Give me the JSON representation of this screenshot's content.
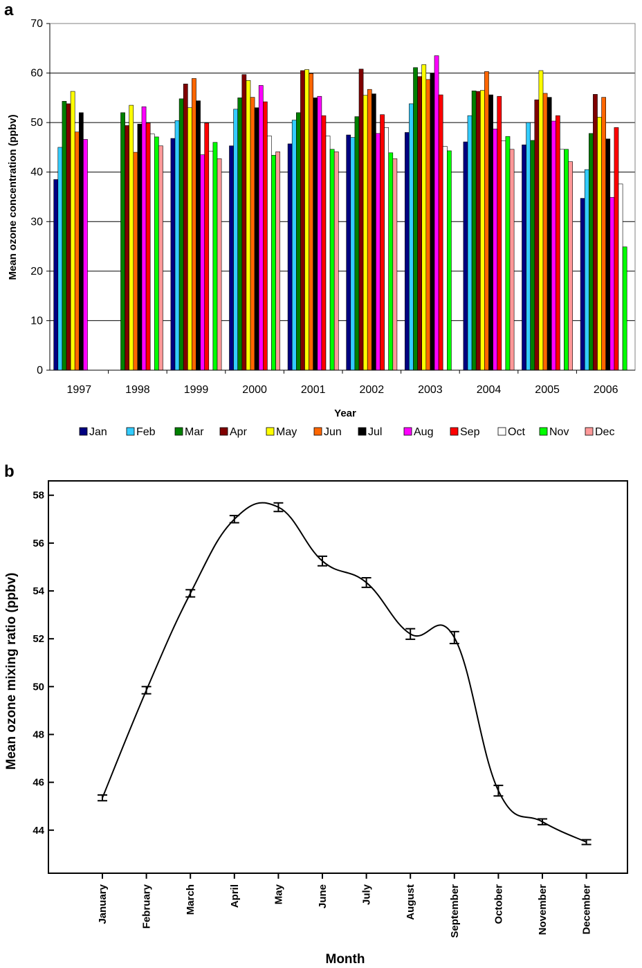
{
  "panel_a": {
    "letter": "a"
  },
  "panel_b": {
    "letter": "b"
  },
  "chart_data": [
    {
      "type": "bar",
      "xlabel": "Year",
      "ylabel": "Mean ozone concentration (ppbv)",
      "ylim": [
        0,
        70
      ],
      "yticks": [
        0,
        10,
        20,
        30,
        40,
        50,
        60,
        70
      ],
      "grid": true,
      "legend_position": "bottom",
      "categories": [
        "1997",
        "1998",
        "1999",
        "2000",
        "2001",
        "2002",
        "2003",
        "2004",
        "2005",
        "2006"
      ],
      "series": [
        {
          "name": "Jan",
          "color": "#000080",
          "values": [
            38.5,
            null,
            46.8,
            45.3,
            45.7,
            47.5,
            48.0,
            46.1,
            45.5,
            34.7
          ]
        },
        {
          "name": "Feb",
          "color": "#33ccff",
          "values": [
            45.0,
            null,
            50.4,
            52.7,
            50.5,
            47.0,
            53.8,
            51.4,
            50.0,
            40.5
          ]
        },
        {
          "name": "Mar",
          "color": "#008000",
          "values": [
            54.3,
            52.0,
            54.8,
            55.0,
            52.0,
            51.2,
            61.1,
            56.4,
            46.4,
            47.8
          ]
        },
        {
          "name": "Apr",
          "color": "#800000",
          "values": [
            53.8,
            49.4,
            57.8,
            59.7,
            60.5,
            60.8,
            59.3,
            56.3,
            54.6,
            55.7
          ]
        },
        {
          "name": "May",
          "color": "#ffff00",
          "values": [
            56.3,
            53.5,
            53.0,
            58.5,
            60.7,
            55.5,
            61.7,
            56.5,
            60.5,
            51.1
          ]
        },
        {
          "name": "Jun",
          "color": "#ff6600",
          "values": [
            48.1,
            44.0,
            58.9,
            55.1,
            59.9,
            56.7,
            58.7,
            60.3,
            55.9,
            55.1
          ]
        },
        {
          "name": "Jul",
          "color": "#000000",
          "values": [
            52.0,
            49.7,
            54.4,
            53.0,
            55.0,
            55.8,
            60.0,
            55.6,
            55.1,
            46.7
          ]
        },
        {
          "name": "Aug",
          "color": "#ff00ff",
          "values": [
            46.6,
            53.2,
            43.5,
            57.5,
            55.3,
            47.8,
            63.5,
            48.7,
            50.3,
            34.9
          ]
        },
        {
          "name": "Sep",
          "color": "#ff0000",
          "values": [
            null,
            49.9,
            49.9,
            54.2,
            51.4,
            51.6,
            55.6,
            55.3,
            51.4,
            49.0
          ]
        },
        {
          "name": "Oct",
          "color": "#ffffff",
          "values": [
            null,
            47.7,
            44.2,
            47.3,
            47.3,
            49.0,
            45.2,
            46.3,
            44.6,
            37.6
          ]
        },
        {
          "name": "Nov",
          "color": "#00ff00",
          "values": [
            null,
            47.1,
            46.0,
            43.4,
            44.6,
            43.9,
            44.3,
            47.2,
            44.6,
            24.9
          ]
        },
        {
          "name": "Dec",
          "color": "#ff9999",
          "values": [
            null,
            45.3,
            42.7,
            44.1,
            44.1,
            42.7,
            null,
            44.6,
            42.1,
            null
          ]
        }
      ]
    },
    {
      "type": "line",
      "xlabel": "Month",
      "ylabel": "Mean ozone mixing ratio (ppbv)",
      "ylim": [
        42.2,
        58.6
      ],
      "yticks": [
        44,
        46,
        48,
        50,
        52,
        54,
        56,
        58
      ],
      "grid": false,
      "categories": [
        "January",
        "February",
        "March",
        "April",
        "May",
        "June",
        "July",
        "August",
        "September",
        "October",
        "November",
        "December"
      ],
      "values": [
        45.35,
        49.85,
        53.9,
        57.0,
        57.5,
        55.25,
        54.35,
        52.2,
        52.05,
        45.65,
        44.35,
        43.5
      ],
      "error": [
        0.12,
        0.15,
        0.15,
        0.15,
        0.18,
        0.2,
        0.2,
        0.22,
        0.25,
        0.22,
        0.12,
        0.1
      ]
    }
  ]
}
